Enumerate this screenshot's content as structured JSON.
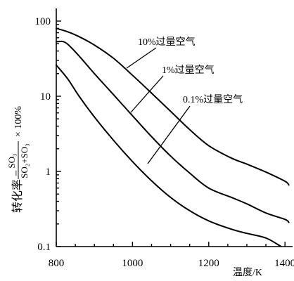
{
  "chart_data": {
    "type": "line",
    "title": "",
    "xlabel": "温度/K",
    "ylabel": {
      "prefix": "转化率 = ",
      "numerator": "SO₃",
      "denominator": "SO₂+SO₃",
      "suffix": "× 100%"
    },
    "xlim": [
      800,
      1420
    ],
    "ylim": [
      0.1,
      100
    ],
    "yscale": "log",
    "grid": false,
    "x_ticks": [
      800,
      1000,
      1200,
      1400
    ],
    "x_tick_labels": [
      "800",
      "1000",
      "1200",
      "1400"
    ],
    "y_ticks": [
      0.1,
      1,
      10,
      100
    ],
    "y_tick_labels": [
      "0.1",
      "1",
      "10",
      "100"
    ],
    "series": [
      {
        "name": "10%过量空气",
        "x": [
          800,
          830,
          860,
          900,
          950,
          1000,
          1050,
          1100,
          1150,
          1200,
          1260,
          1300,
          1350,
          1400,
          1410
        ],
        "y": [
          80,
          72,
          62,
          48,
          32,
          19,
          11,
          6.3,
          3.6,
          2.2,
          1.5,
          1.25,
          0.98,
          0.74,
          0.66
        ]
      },
      {
        "name": "1%过量空气",
        "x": [
          800,
          820,
          840,
          870,
          900,
          950,
          1000,
          1050,
          1100,
          1150,
          1200,
          1260,
          1300,
          1350,
          1400,
          1410
        ],
        "y": [
          53,
          53,
          44,
          30,
          20,
          10.5,
          5.5,
          2.9,
          1.6,
          0.95,
          0.6,
          0.45,
          0.37,
          0.28,
          0.23,
          0.21
        ]
      },
      {
        "name": "0.1%过量空气",
        "x": [
          800,
          830,
          860,
          900,
          950,
          1000,
          1050,
          1100,
          1150,
          1200,
          1260,
          1300,
          1350,
          1390
        ],
        "y": [
          26,
          17,
          10,
          5.3,
          2.6,
          1.35,
          0.75,
          0.45,
          0.3,
          0.22,
          0.17,
          0.15,
          0.13,
          0.1
        ]
      }
    ]
  }
}
